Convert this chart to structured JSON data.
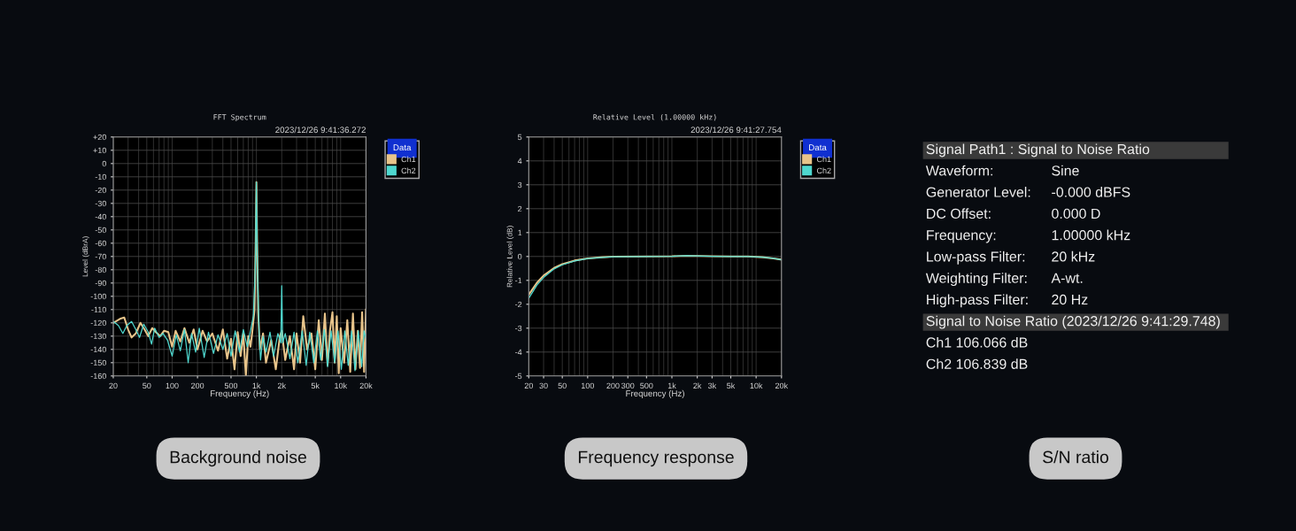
{
  "chart_data": [
    {
      "type": "line",
      "title": "FFT Spectrum",
      "subtitle": "2023/12/26 9:41:36.272",
      "xlabel": "Frequency (Hz)",
      "ylabel": "Level (dBrA)",
      "legend_title": "Data",
      "legend": "top right",
      "grid": true,
      "log": "x",
      "xlim": [
        20,
        20000
      ],
      "xticks": [
        20,
        50,
        100,
        200,
        500,
        {
          "value": 1000,
          "label": "1k"
        },
        {
          "value": 2000,
          "label": "2k"
        },
        {
          "value": 5000,
          "label": "5k"
        },
        {
          "value": 10000,
          "label": "10k"
        },
        {
          "value": 20000,
          "label": "20k"
        }
      ],
      "ylim": [
        -160,
        20
      ],
      "yticks": [
        -160,
        -150,
        -140,
        -130,
        -120,
        -110,
        -100,
        -90,
        -80,
        -70,
        -60,
        -50,
        -40,
        -30,
        -20,
        -10,
        0,
        {
          "value": 10,
          "label": "+10"
        },
        {
          "value": 20,
          "label": "+20"
        }
      ],
      "annotations": [
        "Background noise"
      ],
      "series": [
        {
          "name": "Ch1",
          "color": "#e8c48a",
          "x": [
            20,
            24,
            27,
            30,
            33,
            37,
            42,
            47,
            52,
            58,
            64,
            72,
            80,
            90,
            100,
            110,
            125,
            140,
            160,
            180,
            200,
            230,
            260,
            300,
            350,
            400,
            450,
            500,
            550,
            600,
            650,
            700,
            750,
            800,
            850,
            900,
            950,
            980,
            1000,
            1020,
            1050,
            1100,
            1200,
            1300,
            1500,
            1700,
            1900,
            2000,
            2200,
            2500,
            2800,
            3000,
            3300,
            3600,
            4000,
            4500,
            5000,
            5500,
            6000,
            6500,
            7000,
            7500,
            8000,
            8500,
            9000,
            9500,
            10000,
            11000,
            12000,
            13000,
            14000,
            15000,
            16000,
            17000,
            18000,
            19000,
            20000
          ],
          "values": [
            -120,
            -117,
            -116,
            -125,
            -131,
            -128,
            -120,
            -125,
            -130,
            -124,
            -127,
            -130,
            -126,
            -127,
            -138,
            -126,
            -134,
            -124,
            -135,
            -125,
            -140,
            -126,
            -134,
            -128,
            -141,
            -125,
            -147,
            -132,
            -155,
            -127,
            -145,
            -128,
            -160,
            -130,
            -138,
            -125,
            -110,
            -60,
            -14,
            -60,
            -112,
            -140,
            -128,
            -150,
            -133,
            -155,
            -130,
            -126,
            -148,
            -130,
            -155,
            -128,
            -150,
            -115,
            -140,
            -128,
            -155,
            -118,
            -148,
            -113,
            -152,
            -125,
            -112,
            -150,
            -115,
            -158,
            -124,
            -150,
            -118,
            -157,
            -113,
            -155,
            -126,
            -154,
            -112,
            -157,
            -110
          ]
        },
        {
          "name": "Ch2",
          "color": "#4fd8cf",
          "x": [
            20,
            23,
            26,
            29,
            33,
            37,
            41,
            46,
            52,
            57,
            62,
            70,
            78,
            88,
            100,
            112,
            125,
            140,
            155,
            170,
            190,
            210,
            240,
            270,
            310,
            350,
            400,
            450,
            500,
            560,
            630,
            700,
            780,
            850,
            920,
            970,
            1000,
            1030,
            1080,
            1120,
            1200,
            1300,
            1450,
            1600,
            1800,
            1950,
            2000,
            2050,
            2200,
            2500,
            2800,
            3100,
            3500,
            3900,
            4300,
            4800,
            5300,
            5800,
            6400,
            7000,
            7700,
            8500,
            9300,
            10200,
            11200,
            12300,
            13500,
            14800,
            16200,
            17800,
            19000,
            20000
          ],
          "values": [
            -119,
            -122,
            -128,
            -122,
            -119,
            -125,
            -131,
            -121,
            -127,
            -136,
            -124,
            -131,
            -128,
            -133,
            -145,
            -129,
            -141,
            -125,
            -150,
            -128,
            -142,
            -124,
            -146,
            -127,
            -143,
            -129,
            -140,
            -128,
            -145,
            -126,
            -142,
            -125,
            -138,
            -126,
            -115,
            -80,
            -14,
            -80,
            -130,
            -148,
            -130,
            -142,
            -127,
            -145,
            -128,
            -135,
            -92,
            -135,
            -128,
            -147,
            -127,
            -150,
            -126,
            -152,
            -127,
            -150,
            -126,
            -148,
            -125,
            -153,
            -126,
            -150,
            -126,
            -155,
            -126,
            -152,
            -126,
            -156,
            -126,
            -153,
            -126,
            -132
          ]
        }
      ]
    },
    {
      "type": "line",
      "title": "Relative Level (1.00000 kHz)",
      "subtitle": "2023/12/26 9:41:27.754",
      "xlabel": "Frequency (Hz)",
      "ylabel": "Relative Level (dB)",
      "legend_title": "Data",
      "legend": "top right",
      "grid": true,
      "log": "x",
      "xlim": [
        20,
        20000
      ],
      "xticks": [
        20,
        30,
        50,
        100,
        200,
        300,
        500,
        {
          "value": 1000,
          "label": "1k"
        },
        {
          "value": 2000,
          "label": "2k"
        },
        {
          "value": 3000,
          "label": "3k"
        },
        {
          "value": 5000,
          "label": "5k"
        },
        {
          "value": 10000,
          "label": "10k"
        },
        {
          "value": 20000,
          "label": "20k"
        }
      ],
      "ylim": [
        -5,
        5
      ],
      "yticks": [
        -5,
        -4,
        -3,
        -2,
        -1,
        0,
        1,
        2,
        3,
        4,
        5
      ],
      "annotations": [
        "Frequency response"
      ],
      "series": [
        {
          "name": "Ch1",
          "color": "#e8c48a",
          "x": [
            20,
            25,
            30,
            40,
            50,
            70,
            100,
            150,
            200,
            500,
            1000,
            1500,
            3000,
            5000,
            8000,
            12000,
            16000,
            20000
          ],
          "values": [
            -1.6,
            -1.1,
            -0.8,
            -0.48,
            -0.32,
            -0.17,
            -0.08,
            -0.03,
            -0.01,
            0,
            0.01,
            0.03,
            0.01,
            0,
            0,
            -0.03,
            -0.08,
            -0.13
          ]
        },
        {
          "name": "Ch2",
          "color": "#4fd8cf",
          "x": [
            20,
            25,
            30,
            40,
            50,
            70,
            100,
            150,
            200,
            500,
            1000,
            1500,
            3000,
            5000,
            8000,
            12000,
            16000,
            20000
          ],
          "values": [
            -1.75,
            -1.2,
            -0.88,
            -0.52,
            -0.35,
            -0.19,
            -0.09,
            -0.04,
            -0.01,
            0,
            0.01,
            0.03,
            0.01,
            0,
            0,
            -0.03,
            -0.08,
            -0.14
          ]
        }
      ]
    },
    {
      "type": "other",
      "title": "Signal Path1 : Signal to Noise Ratio",
      "subtitle": "Signal to Noise Ratio (2023/12/26 9:41:29.748)",
      "value_labels": [
        "Sine",
        "-0.000 dBFS",
        "0.000 D",
        "1.00000 kHz",
        "20 kHz",
        "A-wt.",
        "20 Hz"
      ],
      "annotations": [
        "Waveform:",
        "Generator Level:",
        "DC Offset:",
        "Frequency:",
        "Low-pass Filter:",
        "Weighting Filter:",
        "High-pass Filter:",
        "Ch1 106.066 dB",
        "Ch2 106.839 dB",
        "S/N ratio"
      ]
    }
  ]
}
